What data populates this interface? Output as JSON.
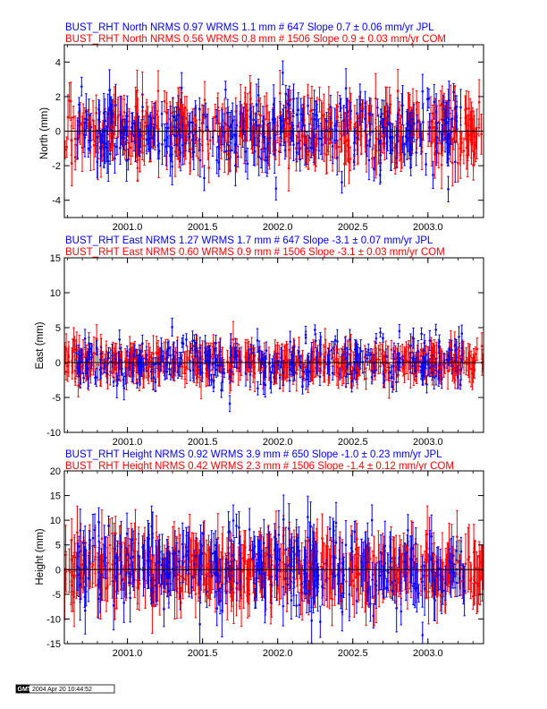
{
  "colors": {
    "jpl": "#0000ff",
    "com": "#ff0000",
    "axis": "#000000"
  },
  "stamp": {
    "logo": "GMT",
    "text": "2004 Apr 20 10:44:52"
  },
  "chart_data": [
    {
      "type": "scatter",
      "component": "North",
      "ylabel": "North (mm)",
      "ylim": [
        -5,
        5
      ],
      "yticks": [
        -4,
        -2,
        0,
        2,
        4
      ],
      "xlim": [
        2000.58,
        2003.37
      ],
      "xticks": [
        2001.0,
        2001.5,
        2002.0,
        2002.5,
        2003.0
      ],
      "xtick_labels": [
        "2001.0",
        "2001.5",
        "2002.0",
        "2002.5",
        "2003.0"
      ],
      "series": [
        {
          "name": "JPL",
          "title": "BUST_RHT North NRMS 0.97 WRMS  1.1 mm # 647 Slope    0.7 ±  0.06 mm/yr JPL",
          "color": "#0000ff",
          "scatter": 1.1,
          "sigma": 1.0,
          "slope": 0.7,
          "x_range": [
            2000.66,
            2003.25
          ]
        },
        {
          "name": "COM",
          "title": "BUST_RHT North NRMS 0.56 WRMS  0.8 mm # 1506 Slope    0.9 ±  0.03 mm/yr COM",
          "color": "#ff0000",
          "scatter": 0.8,
          "sigma": 1.2,
          "slope": 0.9,
          "x_range": [
            2000.58,
            2003.37
          ]
        }
      ]
    },
    {
      "type": "scatter",
      "component": "East",
      "ylabel": "East (mm)",
      "ylim": [
        -10,
        15
      ],
      "yticks": [
        -10,
        -5,
        0,
        5,
        10,
        15
      ],
      "xlim": [
        2000.58,
        2003.37
      ],
      "xticks": [
        2001.0,
        2001.5,
        2002.0,
        2002.5,
        2003.0
      ],
      "xtick_labels": [
        "2001.0",
        "2001.5",
        "2002.0",
        "2002.5",
        "2003.0"
      ],
      "series": [
        {
          "name": "JPL",
          "title": "BUST_RHT East NRMS 1.27 WRMS  1.7 mm # 647 Slope   -3.1 ±  0.07 mm/yr JPL",
          "color": "#0000ff",
          "scatter": 1.7,
          "sigma": 1.5,
          "slope": -3.1,
          "x_range": [
            2000.66,
            2003.25
          ]
        },
        {
          "name": "COM",
          "title": "BUST_RHT East NRMS 0.60 WRMS  0.9 mm # 1506 Slope   -3.1 ±  0.03 mm/yr COM",
          "color": "#ff0000",
          "scatter": 0.9,
          "sigma": 2.2,
          "slope": -3.1,
          "x_range": [
            2000.58,
            2003.37
          ]
        }
      ]
    },
    {
      "type": "scatter",
      "component": "Height",
      "ylabel": "Height (mm)",
      "ylim": [
        -15,
        20
      ],
      "yticks": [
        -15,
        -10,
        -5,
        0,
        5,
        10,
        15,
        20
      ],
      "xlim": [
        2000.58,
        2003.37
      ],
      "xticks": [
        2001.0,
        2001.5,
        2002.0,
        2002.5,
        2003.0
      ],
      "xtick_labels": [
        "2001.0",
        "2001.5",
        "2002.0",
        "2002.5",
        "2003.0"
      ],
      "series": [
        {
          "name": "JPL",
          "title": "BUST_RHT Height NRMS 0.92 WRMS  3.9 mm # 650 Slope   -1.0 ±  0.23 mm/yr JPL",
          "color": "#0000ff",
          "scatter": 3.9,
          "sigma": 4.5,
          "slope": -1.0,
          "x_range": [
            2000.66,
            2003.25
          ]
        },
        {
          "name": "COM",
          "title": "BUST_RHT Height NRMS 0.42 WRMS  2.3 mm # 1506 Slope   -1.4 ±  0.12 mm/yr COM",
          "color": "#ff0000",
          "scatter": 2.3,
          "sigma": 5.5,
          "slope": -1.4,
          "x_range": [
            2000.58,
            2003.37
          ]
        }
      ]
    }
  ]
}
